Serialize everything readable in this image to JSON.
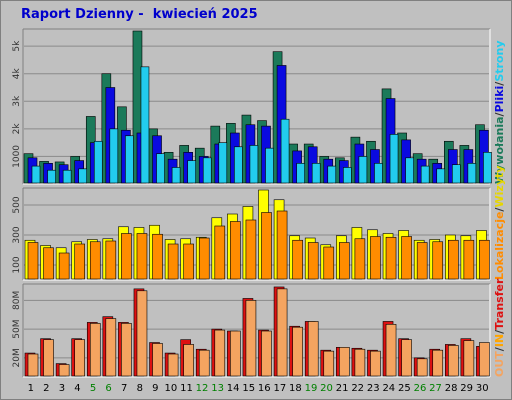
{
  "window": {
    "title": "Raport Dzienny -  kwiecień 2025"
  },
  "colors": {
    "hits": "#1b7a5a",
    "files": "#0a0ae0",
    "pages": "#22ccee",
    "visits": "#ffff00",
    "sites": "#ff8c00",
    "kbytes": "#dd1111",
    "kbin": "#ffa500",
    "kbout": "#f4a460",
    "weekend": "#008000",
    "weekday": "#000000"
  },
  "chart_data": [
    {
      "type": "bar",
      "panel": "hits-files-pages",
      "x": [
        "1",
        "2",
        "3",
        "4",
        "5",
        "6",
        "7",
        "8",
        "9",
        "10",
        "11",
        "12",
        "13",
        "14",
        "15",
        "16",
        "17",
        "18",
        "19",
        "20",
        "21",
        "22",
        "23",
        "24",
        "25",
        "26",
        "27",
        "28",
        "29",
        "30"
      ],
      "weekend_days": [
        "5",
        "6",
        "12",
        "13",
        "19",
        "20",
        "26",
        "27"
      ],
      "ytick_labels": [
        "1000",
        "2k",
        "3k",
        "4k",
        "5k"
      ],
      "ytick_values": [
        1000,
        2000,
        3000,
        4000,
        5000
      ],
      "ylim": [
        0,
        5550
      ],
      "series": [
        {
          "name": "Wywołania",
          "values": [
            1100,
            820,
            800,
            1000,
            2450,
            4000,
            2800,
            5550,
            2000,
            1150,
            1400,
            1300,
            2100,
            2200,
            2500,
            2300,
            4800,
            1450,
            1450,
            1000,
            950,
            1700,
            1550,
            3450,
            1850,
            1100,
            900,
            1550,
            1400,
            2150
          ]
        },
        {
          "name": "Pliki",
          "values": [
            950,
            750,
            700,
            850,
            1500,
            3500,
            1950,
            1850,
            1750,
            900,
            1150,
            1000,
            1450,
            1850,
            2150,
            2100,
            4300,
            1200,
            1350,
            900,
            850,
            1450,
            1250,
            3100,
            1600,
            900,
            750,
            1250,
            1250,
            1950
          ]
        },
        {
          "name": "Strony",
          "values": [
            650,
            500,
            500,
            550,
            1550,
            2000,
            1750,
            4250,
            1100,
            600,
            850,
            950,
            1500,
            1350,
            1400,
            1300,
            2350,
            750,
            750,
            650,
            600,
            1000,
            750,
            1800,
            950,
            650,
            550,
            700,
            750,
            1150
          ]
        }
      ]
    },
    {
      "type": "bar",
      "panel": "visits-sites",
      "x": [
        "1",
        "2",
        "3",
        "4",
        "5",
        "6",
        "7",
        "8",
        "9",
        "10",
        "11",
        "12",
        "13",
        "14",
        "15",
        "16",
        "17",
        "18",
        "19",
        "20",
        "21",
        "22",
        "23",
        "24",
        "25",
        "26",
        "27",
        "28",
        "29",
        "30"
      ],
      "ytick_labels": [
        "100",
        "300",
        "500"
      ],
      "ytick_values": [
        100,
        300,
        500
      ],
      "ylim": [
        0,
        600
      ],
      "series": [
        {
          "name": "Wizyty",
          "values": [
            265,
            230,
            215,
            255,
            270,
            275,
            355,
            350,
            365,
            270,
            275,
            285,
            415,
            440,
            490,
            600,
            535,
            295,
            280,
            235,
            295,
            350,
            335,
            310,
            330,
            265,
            270,
            300,
            295,
            330
          ]
        },
        {
          "name": "Lokalizacje",
          "values": [
            250,
            215,
            180,
            240,
            255,
            260,
            310,
            310,
            305,
            240,
            240,
            280,
            360,
            390,
            400,
            450,
            460,
            265,
            250,
            220,
            250,
            275,
            290,
            285,
            290,
            250,
            255,
            265,
            265,
            265
          ]
        }
      ]
    },
    {
      "type": "bar",
      "panel": "transfer",
      "x": [
        "1",
        "2",
        "3",
        "4",
        "5",
        "6",
        "7",
        "8",
        "9",
        "10",
        "11",
        "12",
        "13",
        "14",
        "15",
        "16",
        "17",
        "18",
        "19",
        "20",
        "21",
        "22",
        "23",
        "24",
        "25",
        "26",
        "27",
        "28",
        "29",
        "30"
      ],
      "ytick_labels": [
        "20M",
        "50M",
        "80M"
      ],
      "ytick_values": [
        20,
        50,
        80
      ],
      "ylim": [
        0,
        95
      ],
      "series": [
        {
          "name": "Transfer",
          "values": [
            25,
            40,
            14,
            40,
            57,
            63,
            57,
            92,
            36,
            25,
            39,
            29,
            50,
            48,
            82,
            49,
            94,
            53,
            58,
            28,
            31,
            30,
            28,
            58,
            40,
            20,
            29,
            34,
            40,
            32
          ]
        },
        {
          "name": "IN",
          "values": [
            0,
            0,
            0,
            0,
            0,
            0,
            0,
            0,
            0,
            0,
            0,
            0,
            0,
            0,
            0,
            0,
            0,
            0,
            0,
            0,
            0,
            0,
            0,
            0,
            0,
            0,
            0,
            0,
            0,
            0
          ]
        },
        {
          "name": "OUT",
          "values": [
            24,
            39,
            13,
            39,
            56,
            61,
            56,
            90,
            35,
            24,
            34,
            28,
            49,
            48,
            80,
            48,
            92,
            52,
            58,
            27,
            31,
            29,
            27,
            55,
            39,
            19,
            28,
            33,
            38,
            36
          ]
        }
      ]
    }
  ],
  "legends": {
    "panel1": [
      {
        "text": "Wywołania",
        "sep": "",
        "color": "#1b7a5a"
      },
      {
        "text": "Pliki",
        "sep": "/",
        "color": "#0a0ae0"
      },
      {
        "text": "Strony",
        "sep": "/",
        "color": "#22ccee"
      }
    ],
    "panel2": [
      {
        "text": "Lokalizacje",
        "sep": "",
        "color": "#ff8c00"
      },
      {
        "text": "Wizyty",
        "sep": "/",
        "color": "#e6d600"
      }
    ],
    "panel3": [
      {
        "text": "OUT",
        "sep": "",
        "color": "#f4a460"
      },
      {
        "text": "IN",
        "sep": "/",
        "color": "#ffa500"
      },
      {
        "text": "Transfer",
        "sep": "/",
        "color": "#dd1111"
      }
    ]
  }
}
